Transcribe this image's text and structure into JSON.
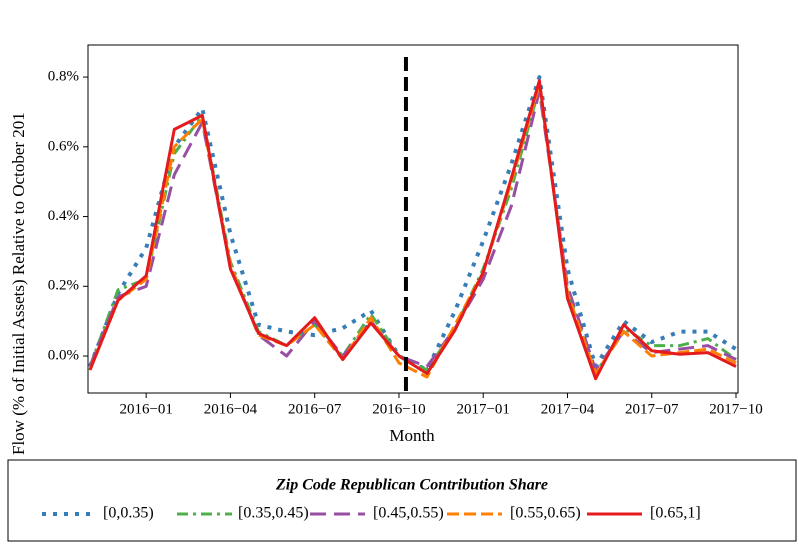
{
  "chart_data": {
    "type": "line",
    "ylabel": "Flow (% of Initial Assets) Relative to October 201",
    "xlabel": "Month",
    "legend_title": "Zip Code Republican Contribution Share",
    "x": [
      "2015-11",
      "2015-12",
      "2016-01",
      "2016-02",
      "2016-03",
      "2016-04",
      "2016-05",
      "2016-06",
      "2016-07",
      "2016-08",
      "2016-09",
      "2016-10",
      "2016-11",
      "2016-12",
      "2017-01",
      "2017-02",
      "2017-03",
      "2017-04",
      "2017-05",
      "2017-06",
      "2017-07",
      "2017-08",
      "2017-09",
      "2017-10"
    ],
    "xticks": [
      {
        "value": "2016-01",
        "label": "2016−01"
      },
      {
        "value": "2016-04",
        "label": "2016−04"
      },
      {
        "value": "2016-07",
        "label": "2016−07"
      },
      {
        "value": "2016-10",
        "label": "2016−10"
      },
      {
        "value": "2017-01",
        "label": "2017−01"
      },
      {
        "value": "2017-04",
        "label": "2017−04"
      },
      {
        "value": "2017-07",
        "label": "2017−07"
      },
      {
        "value": "2017-10",
        "label": "2017−10"
      }
    ],
    "ylim": [
      -0.106,
      0.892
    ],
    "yticks": [
      {
        "value": 0,
        "label": "0.0%"
      },
      {
        "value": 0.2,
        "label": "0.2%"
      },
      {
        "value": 0.4,
        "label": "0.4%"
      },
      {
        "value": 0.6,
        "label": "0.6%"
      },
      {
        "value": 0.8,
        "label": "0.8%"
      }
    ],
    "vline_x": "2016-10",
    "series": [
      {
        "name": "[0,0.35)",
        "color": "#377eb8",
        "style": "dotted",
        "values": [
          -0.03,
          0.18,
          0.31,
          0.6,
          0.71,
          0.35,
          0.09,
          0.07,
          0.06,
          0.08,
          0.13,
          0.0,
          -0.04,
          0.13,
          0.33,
          0.55,
          0.8,
          0.25,
          -0.03,
          0.1,
          0.04,
          0.07,
          0.07,
          0.02
        ]
      },
      {
        "name": "[0.35,0.45)",
        "color": "#4daf4a",
        "style": "dashdot",
        "values": [
          -0.03,
          0.19,
          0.22,
          0.58,
          0.69,
          0.27,
          0.07,
          0.03,
          0.09,
          0.0,
          0.12,
          0.0,
          -0.04,
          0.08,
          0.25,
          0.48,
          0.77,
          0.19,
          -0.05,
          0.08,
          0.03,
          0.03,
          0.05,
          -0.01
        ]
      },
      {
        "name": "[0.45,0.55)",
        "color": "#984ea3",
        "style": "dashed",
        "values": [
          -0.03,
          0.17,
          0.2,
          0.52,
          0.67,
          0.26,
          0.06,
          0.0,
          0.1,
          0.0,
          0.1,
          0.0,
          -0.03,
          0.08,
          0.22,
          0.43,
          0.76,
          0.2,
          -0.04,
          0.07,
          0.01,
          0.02,
          0.03,
          -0.01
        ]
      },
      {
        "name": "[0.55,0.65)",
        "color": "#ff7f00",
        "style": "shortdash",
        "values": [
          -0.04,
          0.16,
          0.22,
          0.6,
          0.68,
          0.26,
          0.06,
          0.03,
          0.09,
          -0.01,
          0.11,
          -0.02,
          -0.06,
          0.09,
          0.24,
          0.5,
          0.78,
          0.18,
          -0.05,
          0.07,
          0.0,
          0.01,
          0.02,
          -0.02
        ]
      },
      {
        "name": "[0.65,1]",
        "color": "#e41a1c",
        "style": "solid",
        "values": [
          -0.04,
          0.16,
          0.23,
          0.65,
          0.69,
          0.25,
          0.065,
          0.03,
          0.11,
          -0.01,
          0.095,
          0.0,
          -0.05,
          0.075,
          0.24,
          0.51,
          0.79,
          0.165,
          -0.065,
          0.09,
          0.015,
          0.005,
          0.01,
          -0.03
        ]
      }
    ]
  }
}
